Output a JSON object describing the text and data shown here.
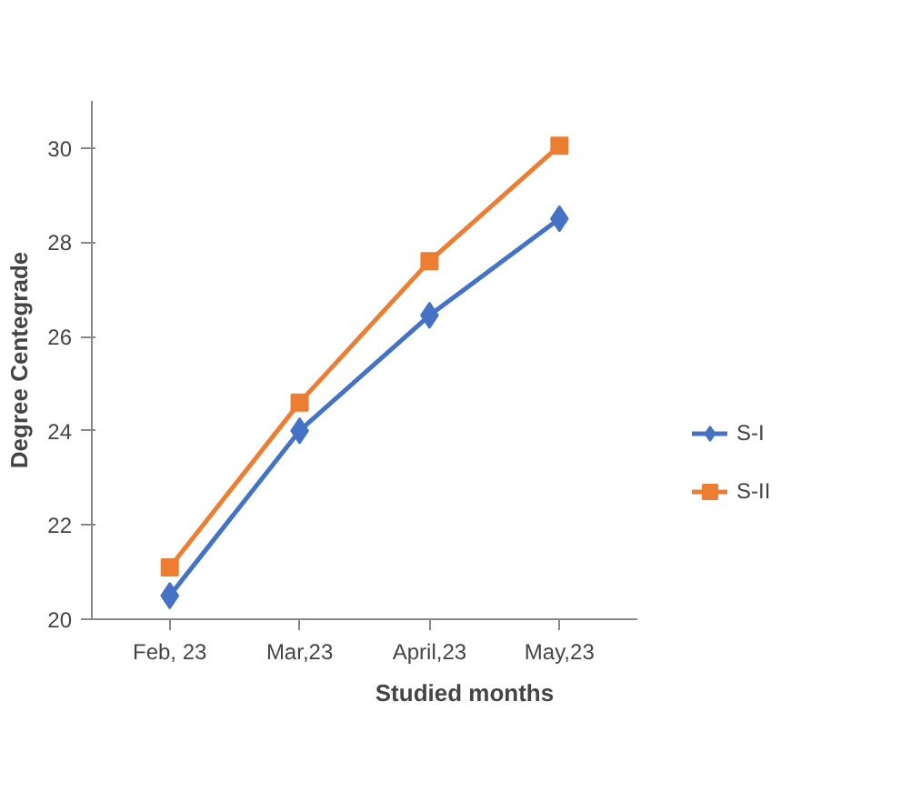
{
  "chart_data": {
    "type": "line",
    "xlabel": "Studied months",
    "ylabel": "Degree Centegrade",
    "categories": [
      "Feb, 23",
      "Mar,23",
      "April,23",
      "May,23"
    ],
    "series": [
      {
        "name": "S-I",
        "color": "#4472c4",
        "marker": "diamond",
        "values": [
          20.5,
          24.0,
          26.45,
          28.5
        ]
      },
      {
        "name": "S-II",
        "color": "#ed7d31",
        "marker": "square",
        "values": [
          21.1,
          24.6,
          27.6,
          30.05
        ]
      }
    ],
    "ylim": [
      20,
      31
    ],
    "yticks": [
      20,
      22,
      24,
      26,
      28,
      30
    ],
    "grid": false,
    "legend": "right"
  }
}
